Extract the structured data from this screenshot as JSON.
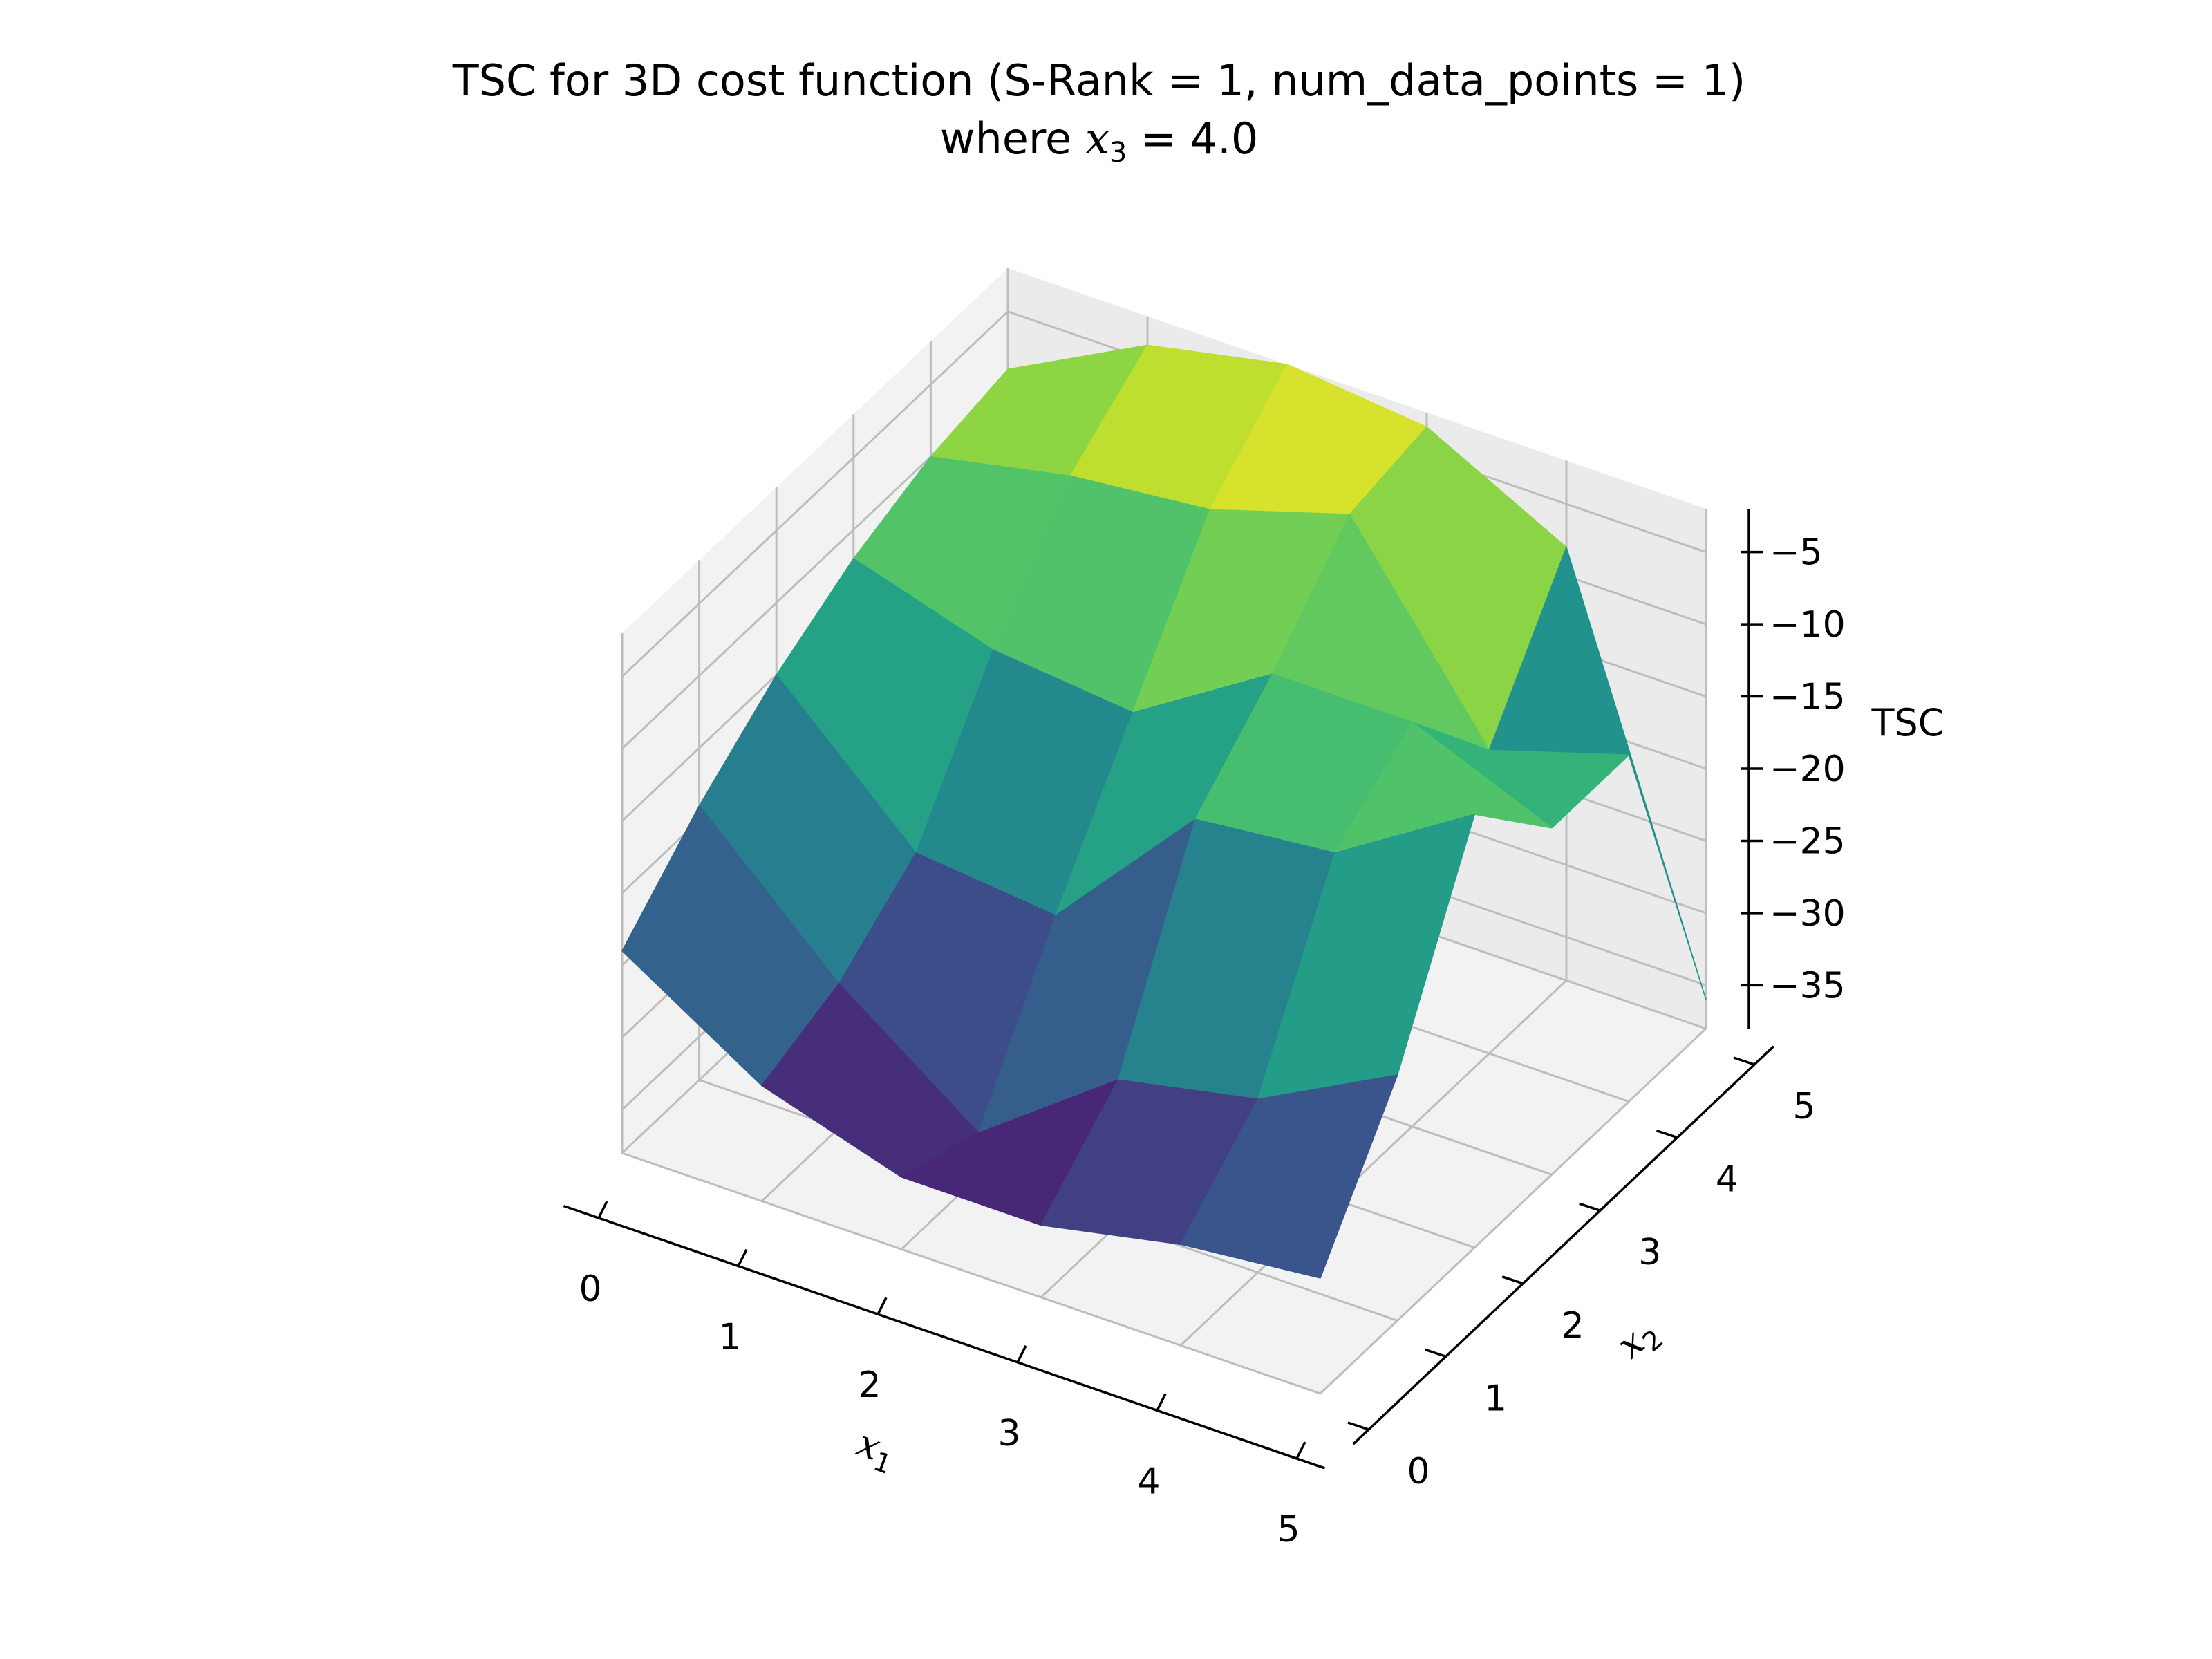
{
  "chart_data": {
    "type": "surface3d",
    "title": "TSC for 3D cost function (S-Rank = 1, num_data_points = 1)",
    "subtitle_prefix": "where ",
    "subtitle_var": "x",
    "subtitle_sub": "3",
    "subtitle_suffix": " = 4.0",
    "xlabel_var": "x",
    "xlabel_sub": "1",
    "ylabel_var": "x",
    "ylabel_sub": "2",
    "zlabel": "TSC",
    "colormap": "viridis",
    "xlim": [
      0,
      5
    ],
    "ylim": [
      0,
      5
    ],
    "zlim": [
      -38,
      -2
    ],
    "x_ticks": [
      "0",
      "1",
      "2",
      "3",
      "4",
      "5"
    ],
    "y_ticks": [
      "0",
      "1",
      "2",
      "3",
      "4",
      "5"
    ],
    "z_ticks": [
      "−35",
      "−30",
      "−25",
      "−20",
      "−15",
      "−10",
      "−5"
    ],
    "grid": true,
    "x": [
      0,
      1,
      2,
      3,
      4,
      5
    ],
    "y": [
      0,
      1,
      2,
      3,
      4,
      5
    ],
    "z": [
      [
        -24,
        -19,
        -15,
        -12,
        -10,
        -9
      ],
      [
        -30,
        -28,
        -24,
        -15,
        -8,
        -4
      ],
      [
        -33,
        -35,
        -25,
        -16,
        -7,
        -2
      ],
      [
        -33,
        -28,
        -15,
        -10,
        -4,
        -3
      ],
      [
        -31,
        -26,
        -14,
        -10,
        -17,
        -8
      ],
      [
        -30,
        -21,
        -8,
        -14,
        -14,
        -36
      ]
    ]
  }
}
